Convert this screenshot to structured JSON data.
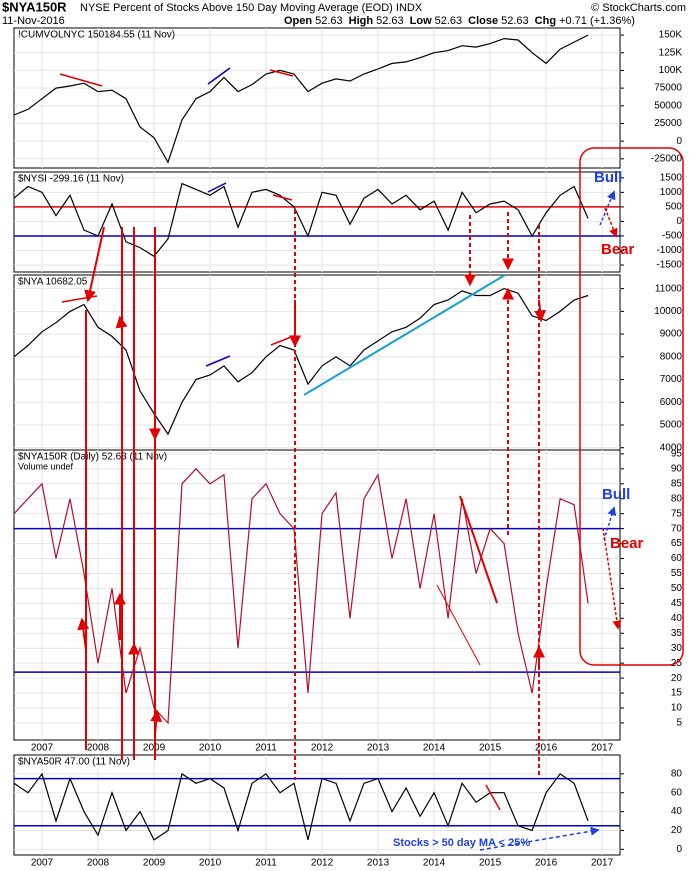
{
  "chart_data": {
    "type": "line",
    "symbol": "$NYA150R",
    "title": "NYSE Percent of Stocks Above 150 Day Moving Average (EOD) INDX",
    "date": "11-Nov-2016",
    "source": "© StockCharts.com",
    "quote": [
      {
        "label": "Open",
        "value": 52.63
      },
      {
        "label": "High",
        "value": 52.63
      },
      {
        "label": "Low",
        "value": 52.63
      },
      {
        "label": "Close",
        "value": 52.63
      }
    ],
    "change_label": "Chg",
    "change": "+0.71 (+1.36%)",
    "grid": true,
    "xlim": [
      2006.5,
      2017.32
    ],
    "xticks": [
      2007,
      2008,
      2009,
      2010,
      2011,
      2012,
      2013,
      2014,
      2015,
      2016,
      2017
    ],
    "x": [
      2006.5,
      2006.75,
      2007,
      2007.25,
      2007.5,
      2007.75,
      2008,
      2008.25,
      2008.5,
      2008.75,
      2009,
      2009.25,
      2009.5,
      2009.75,
      2010,
      2010.25,
      2010.5,
      2010.75,
      2011,
      2011.25,
      2011.5,
      2011.75,
      2012,
      2012.25,
      2012.5,
      2012.75,
      2013,
      2013.25,
      2013.5,
      2013.75,
      2014,
      2014.25,
      2014.5,
      2014.75,
      2015,
      2015.25,
      2015.5,
      2015.75,
      2016,
      2016.25,
      2016.5,
      2016.75
    ],
    "panels": [
      {
        "label": "!CUMVOLNYC 150184.55 (11 Nov)",
        "color": "#000000",
        "ylim": [
          -38000,
          160000
        ],
        "yticks": [
          {
            "value": 150000,
            "label": "150K"
          },
          {
            "value": 125000,
            "label": "125K"
          },
          {
            "value": 100000,
            "label": "100K"
          },
          75000,
          50000,
          25000,
          0,
          -25000
        ],
        "values": [
          37000,
          45000,
          60000,
          75000,
          78000,
          82000,
          70000,
          72000,
          60000,
          20000,
          5000,
          -30000,
          30000,
          60000,
          70000,
          90000,
          70000,
          80000,
          95000,
          100000,
          95000,
          70000,
          82000,
          88000,
          85000,
          95000,
          102000,
          110000,
          112000,
          118000,
          125000,
          128000,
          135000,
          133000,
          138000,
          145000,
          143000,
          125000,
          110000,
          130000,
          140000,
          150000
        ],
        "hlines": []
      },
      {
        "label": "$NYSI -299.16 (11 Nov)",
        "color": "#000000",
        "ylim": [
          -1740,
          1700
        ],
        "yticks": [
          1500,
          1000,
          500,
          0,
          -500,
          -1000,
          -1500
        ],
        "values": [
          800,
          1200,
          1000,
          200,
          900,
          -300,
          -500,
          600,
          -700,
          -900,
          -1200,
          -600,
          1300,
          1100,
          900,
          1200,
          -200,
          1000,
          1100,
          900,
          500,
          -500,
          1000,
          900,
          -100,
          800,
          1100,
          600,
          900,
          400,
          700,
          -300,
          1000,
          300,
          600,
          700,
          400,
          -500,
          300,
          900,
          1200,
          100
        ],
        "hlines": [
          {
            "value": 500,
            "color": "#e00000"
          },
          {
            "value": -500,
            "color": "#0000cc"
          }
        ]
      },
      {
        "label": "$NYA 10682.05",
        "color": "#000000",
        "ylim": [
          3900,
          11600
        ],
        "yticks": [
          11000,
          10000,
          9000,
          8000,
          7000,
          6000,
          5000,
          4000
        ],
        "values": [
          8000,
          8500,
          9100,
          9500,
          10000,
          10300,
          9300,
          8900,
          8300,
          6500,
          5500,
          4600,
          6000,
          7000,
          7200,
          7600,
          6900,
          7300,
          8000,
          8500,
          8300,
          6800,
          7600,
          8000,
          7600,
          8300,
          8700,
          9100,
          9300,
          9700,
          10300,
          10500,
          10900,
          10700,
          10700,
          11000,
          10800,
          9800,
          9600,
          10000,
          10500,
          10700
        ],
        "hlines": []
      },
      {
        "label": "$NYA150R (Daily) 52.63 (11 Nov)",
        "sublabel": "Volume undef",
        "color": "#b0102c",
        "ylim": [
          -0.7,
          96.3
        ],
        "yticks": [
          95,
          90,
          85,
          80,
          75,
          70,
          65,
          60,
          55,
          50,
          45,
          40,
          35,
          30,
          25,
          20,
          15,
          10,
          5
        ],
        "values": [
          75,
          80,
          85,
          60,
          80,
          55,
          25,
          50,
          15,
          30,
          10,
          5,
          85,
          90,
          85,
          88,
          30,
          80,
          85,
          75,
          70,
          15,
          75,
          82,
          40,
          80,
          88,
          60,
          80,
          50,
          75,
          40,
          80,
          55,
          70,
          65,
          35,
          15,
          50,
          80,
          78,
          45
        ],
        "hlines": [
          {
            "value": 70,
            "color": "#0000cc"
          },
          {
            "value": 22,
            "color": "#0000cc"
          }
        ]
      },
      {
        "label": "$NYA50R 47.00 (11 Nov)",
        "color": "#000000",
        "ylim": [
          -6,
          100
        ],
        "yticks": [
          80,
          60,
          40,
          20,
          0
        ],
        "values": [
          70,
          60,
          80,
          30,
          75,
          40,
          15,
          60,
          20,
          40,
          10,
          20,
          80,
          70,
          75,
          65,
          20,
          70,
          80,
          60,
          70,
          10,
          75,
          70,
          30,
          70,
          75,
          40,
          65,
          35,
          60,
          25,
          70,
          50,
          60,
          60,
          25,
          20,
          60,
          80,
          70,
          30
        ],
        "hlines": [
          {
            "value": 75,
            "color": "#0000cc"
          },
          {
            "value": 25,
            "color": "#0000cc"
          }
        ]
      }
    ],
    "annotations": {
      "bull": "Bull",
      "bear": "Bear",
      "note": "Stocks > 50 day MA < 25%"
    }
  }
}
